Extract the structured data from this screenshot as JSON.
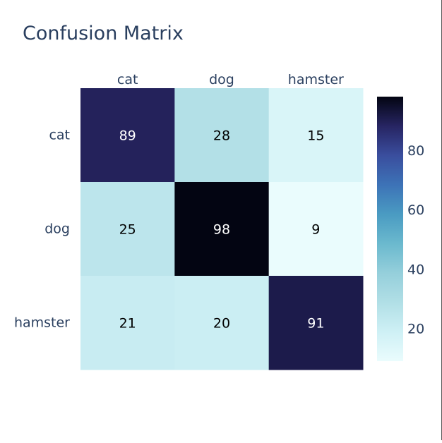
{
  "chart_data": {
    "type": "heatmap",
    "title": "Confusion Matrix",
    "x": [
      "cat",
      "dog",
      "hamster"
    ],
    "y": [
      "cat",
      "dog",
      "hamster"
    ],
    "z": [
      [
        89,
        28,
        15
      ],
      [
        25,
        98,
        9
      ],
      [
        21,
        20,
        91
      ]
    ],
    "x_axis_position": "top",
    "colorscale": "ice (reversed)",
    "colorbar": {
      "zmin": 9,
      "zmax": 98,
      "ticks": [
        20,
        40,
        60,
        80
      ]
    },
    "cell_label_colors": {
      "dark": "#ffffff",
      "light": "#000000"
    },
    "colors": {
      "label_text": "#2a3f5f"
    }
  }
}
